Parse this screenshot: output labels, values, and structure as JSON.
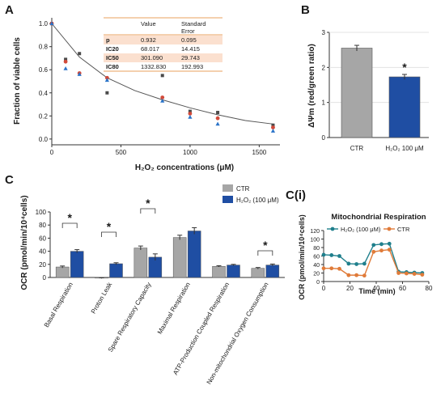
{
  "chart_data": [
    {
      "panel": "A",
      "type": "scatter",
      "xlabel": "H₂O₂ concentrations (μM)",
      "ylabel": "Fraction of viable cells",
      "xlim": [
        0,
        1650
      ],
      "ylim": [
        -0.05,
        1.05
      ],
      "xticks": [
        "0",
        "500",
        "1000",
        "1500"
      ],
      "yticks": [
        "0.0",
        "0.2",
        "0.4",
        "0.6",
        "0.8",
        "1.0"
      ],
      "series": [
        {
          "marker": "square",
          "color": "#4a4a4a",
          "x": [
            0,
            100,
            200,
            400,
            800,
            1000,
            1200,
            1600
          ],
          "y": [
            1.0,
            0.69,
            0.74,
            0.4,
            0.55,
            0.24,
            0.23,
            0.12
          ]
        },
        {
          "marker": "circle",
          "color": "#d24a3a",
          "x": [
            0,
            100,
            200,
            400,
            800,
            1000,
            1200,
            1600
          ],
          "y": [
            1.0,
            0.67,
            0.57,
            0.53,
            0.36,
            0.22,
            0.18,
            0.1
          ]
        },
        {
          "marker": "triangle",
          "color": "#2b73c8",
          "x": [
            0,
            100,
            200,
            400,
            800,
            1000,
            1200,
            1600
          ],
          "y": [
            1.0,
            0.61,
            0.56,
            0.51,
            0.33,
            0.19,
            0.13,
            0.07
          ]
        }
      ],
      "fit": {
        "type": "exponential-decay",
        "x": [
          0,
          200,
          400,
          600,
          800,
          1000,
          1200,
          1400,
          1600
        ],
        "y": [
          1.0,
          0.71,
          0.53,
          0.42,
          0.34,
          0.27,
          0.21,
          0.16,
          0.13
        ]
      },
      "table": {
        "headers": [
          "",
          "Value",
          "Standard Error"
        ],
        "rows": [
          [
            "p",
            "0.932",
            "0.095"
          ],
          [
            "IC20",
            "68.017",
            "14.415"
          ],
          [
            "IC50",
            "301.090",
            "29.743"
          ],
          [
            "IC80",
            "1332.830",
            "192.993"
          ]
        ]
      }
    },
    {
      "panel": "B",
      "type": "bar",
      "ylabel": "ΔΨm (red/green ratio)",
      "ylim": [
        0,
        3
      ],
      "yticks": [
        "0",
        "1",
        "2",
        "3"
      ],
      "categories": [
        "CTR",
        "H₂O₂ 100 μM"
      ],
      "values": [
        2.55,
        1.73
      ],
      "errors": [
        0.08,
        0.07
      ],
      "colors": [
        "#a6a6a6",
        "#1f4ea3"
      ],
      "annotation": "*"
    },
    {
      "panel": "C",
      "type": "bar",
      "ylabel": "OCR (pmol/min/10⁴cells)",
      "ylim": [
        -5,
        100
      ],
      "yticks": [
        "0",
        "20",
        "40",
        "60",
        "80",
        "100"
      ],
      "categories": [
        "Basal Respiration",
        "Proton Leak",
        "Spare Respiratory Capacity",
        "Maximal Respiration",
        "ATP-Production Coupled Respiration",
        "Non-mitochondrial Oxygen Consumption"
      ],
      "series": [
        {
          "name": "CTR",
          "color": "#a6a6a6",
          "values": [
            16,
            -1,
            45,
            61,
            17,
            14
          ],
          "errors": [
            1.5,
            0.5,
            3,
            3.5,
            1,
            1.2
          ]
        },
        {
          "name": "H₂O₂ (100 μM)",
          "color": "#1f4ea3",
          "values": [
            40,
            21,
            31,
            71,
            19,
            19
          ],
          "errors": [
            2.5,
            1.5,
            5,
            5,
            1,
            1.5
          ]
        }
      ],
      "significant": [
        "*",
        "*",
        "*",
        "*"
      ]
    },
    {
      "panel": "C(i)",
      "type": "line",
      "title": "Mitochondrial Respiration",
      "xlabel": "Time (min)",
      "ylabel": "OCR (pmol/min/10⁴cells)",
      "xlim": [
        0,
        80
      ],
      "ylim": [
        0,
        120
      ],
      "xticks": [
        "0",
        "20",
        "40",
        "60",
        "80"
      ],
      "yticks": [
        "0",
        "20",
        "40",
        "60",
        "80",
        "100",
        "120"
      ],
      "series": [
        {
          "name": "H₂O₂ (100 μM)",
          "color": "#1f7f8c",
          "x": [
            0,
            6,
            12,
            19,
            25,
            31,
            38,
            44,
            50,
            57,
            63,
            69,
            75
          ],
          "y": [
            63,
            62,
            60,
            42,
            41,
            42,
            86,
            88,
            89,
            23,
            22,
            21,
            20
          ]
        },
        {
          "name": "CTR",
          "color": "#e07b39",
          "x": [
            0,
            6,
            12,
            19,
            25,
            31,
            38,
            44,
            50,
            57,
            63,
            69,
            75
          ],
          "y": [
            31,
            31,
            30,
            15,
            15,
            14,
            70,
            73,
            75,
            20,
            19,
            18,
            16
          ]
        }
      ]
    }
  ]
}
